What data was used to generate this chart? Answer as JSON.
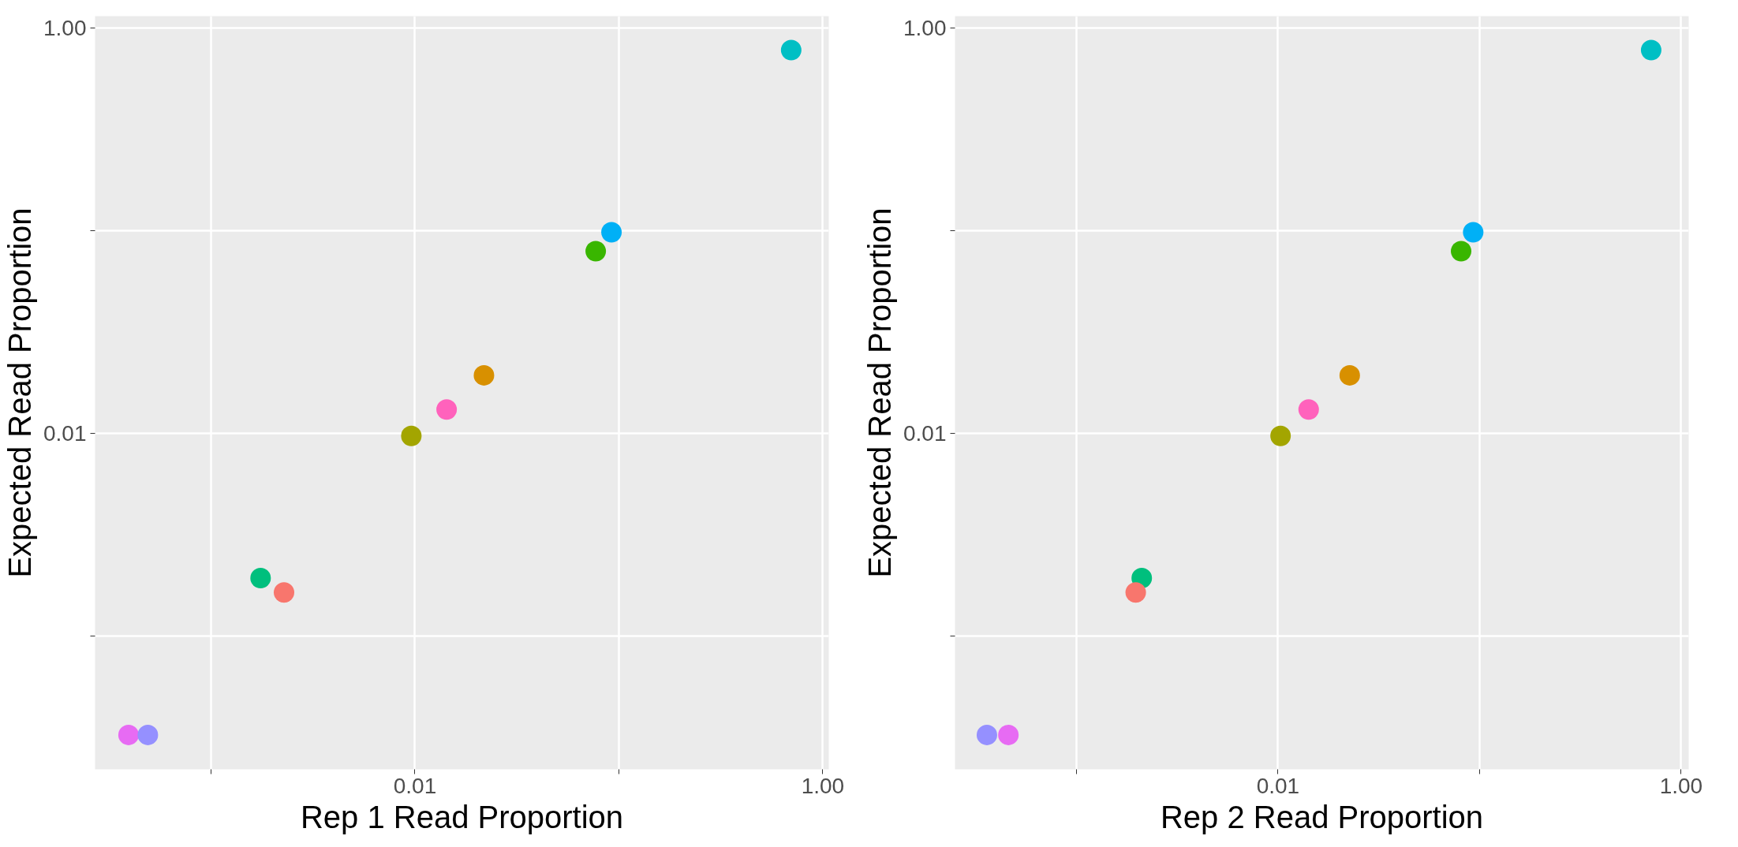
{
  "chart_data": [
    {
      "type": "scatter",
      "xlabel": "Rep 1 Read Proportion",
      "ylabel": "Expected Read Proportion",
      "log": "xy",
      "grid": true,
      "marker": "circle",
      "x": [
        0.7,
        0.092,
        0.077,
        0.0218,
        0.0143,
        0.0096,
        0.00175,
        0.00228,
        0.000394,
        0.00049
      ],
      "values": [
        0.776,
        0.098,
        0.079,
        0.0193,
        0.0131,
        0.0097,
        0.00193,
        0.00164,
        0.000325,
        0.000325
      ],
      "colors": [
        "#00BFC4",
        "#00B0F6",
        "#39B600",
        "#D89000",
        "#FF62BC",
        "#A3A500",
        "#00BF7D",
        "#F8766D",
        "#E76BF3",
        "#9590FF"
      ],
      "xlim": [
        0.00027,
        1.07
      ],
      "ylim": [
        0.00022,
        1.14
      ],
      "xticks": [
        {
          "value": 0.001,
          "label": null
        },
        0.01,
        {
          "value": 0.1,
          "label": null
        },
        {
          "value": 1,
          "label": "1.00"
        }
      ],
      "yticks": [
        {
          "value": 0.001,
          "label": null
        },
        0.01,
        {
          "value": 0.1,
          "label": null
        },
        {
          "value": 1,
          "label": "1.00"
        }
      ]
    },
    {
      "type": "scatter",
      "xlabel": "Rep 2 Read Proportion",
      "ylabel": "Expected Read Proportion",
      "log": "xy",
      "grid": true,
      "marker": "circle",
      "x": [
        0.71,
        0.093,
        0.081,
        0.0227,
        0.0142,
        0.0103,
        0.00211,
        0.00197,
        0.00036,
        0.00046
      ],
      "values": [
        0.776,
        0.098,
        0.079,
        0.0193,
        0.0131,
        0.0097,
        0.00193,
        0.00164,
        0.000325,
        0.000325
      ],
      "colors": [
        "#00BFC4",
        "#00B0F6",
        "#39B600",
        "#D89000",
        "#FF62BC",
        "#A3A500",
        "#00BF7D",
        "#F8766D",
        "#9590FF",
        "#E76BF3"
      ],
      "xlim": [
        0.00025,
        1.09
      ],
      "ylim": [
        0.00022,
        1.14
      ],
      "xticks": [
        {
          "value": 0.001,
          "label": null
        },
        0.01,
        {
          "value": 0.1,
          "label": null
        },
        {
          "value": 1,
          "label": "1.00"
        }
      ],
      "yticks": [
        {
          "value": 0.001,
          "label": null
        },
        0.01,
        {
          "value": 0.1,
          "label": null
        },
        {
          "value": 1,
          "label": "1.00"
        }
      ]
    }
  ]
}
